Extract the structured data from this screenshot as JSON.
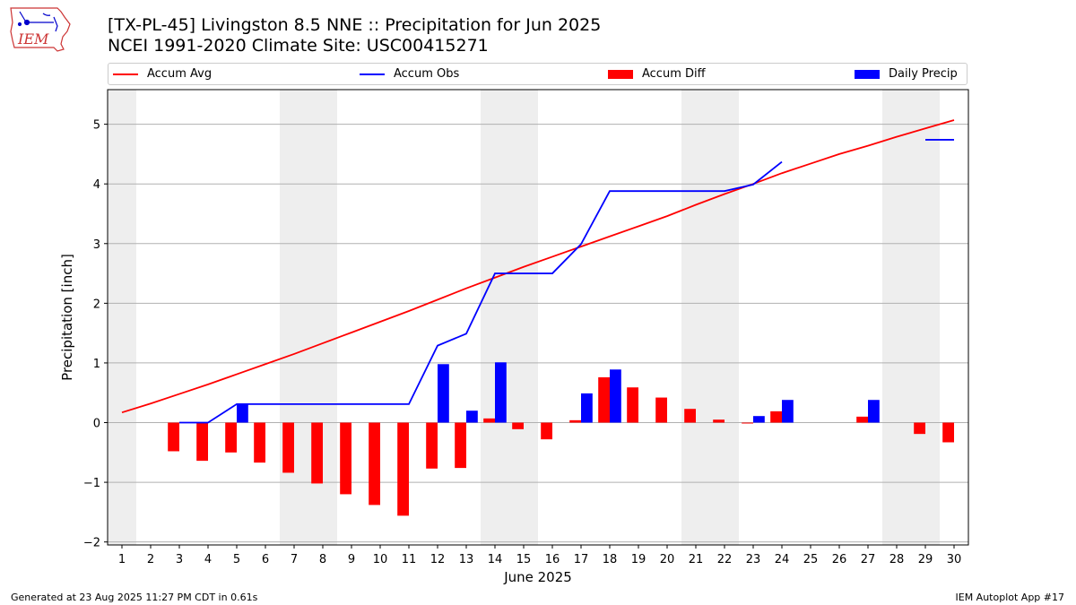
{
  "header": {
    "title_line1": "[TX-PL-45] Livingston 8.5 NNE :: Precipitation for Jun 2025",
    "title_line2": "NCEI 1991-2020 Climate Site: USC00415271",
    "logo_text": "IEM"
  },
  "footer": {
    "generated": "Generated at 23 Aug 2025 11:27 PM CDT in 0.61s",
    "app": "IEM Autoplot App #17"
  },
  "colors": {
    "avg": "#ff0000",
    "obs": "#0000ff",
    "diff": "#ff0000",
    "daily": "#0000ff",
    "weekend_band": "#eeeeee",
    "grid": "#b0b0b0"
  },
  "chart_data": {
    "type": "bar",
    "title": "[TX-PL-45] Livingston 8.5 NNE :: Precipitation for Jun 2025",
    "subtitle": "NCEI 1991-2020 Climate Site: USC00415271",
    "xlabel": "June 2025",
    "ylabel": "Precipitation [inch]",
    "xlim": [
      0.5,
      30.5
    ],
    "ylim": [
      -2.05,
      5.58
    ],
    "x_ticks": [
      1,
      2,
      3,
      4,
      5,
      6,
      7,
      8,
      9,
      10,
      11,
      12,
      13,
      14,
      15,
      16,
      17,
      18,
      19,
      20,
      21,
      22,
      23,
      24,
      25,
      26,
      27,
      28,
      29,
      30
    ],
    "y_ticks": [
      -2,
      -1,
      0,
      1,
      2,
      3,
      4,
      5
    ],
    "y_tick_labels": [
      "−2",
      "−1",
      "0",
      "1",
      "2",
      "3",
      "4",
      "5"
    ],
    "grid": "horizontal",
    "legend_position": "top",
    "weekend_bands": [
      [
        0.5,
        1.5
      ],
      [
        6.5,
        8.5
      ],
      [
        13.5,
        15.5
      ],
      [
        20.5,
        22.5
      ],
      [
        27.5,
        29.5
      ]
    ],
    "days": [
      1,
      2,
      3,
      4,
      5,
      6,
      7,
      8,
      9,
      10,
      11,
      12,
      13,
      14,
      15,
      16,
      17,
      18,
      19,
      20,
      21,
      22,
      23,
      24,
      25,
      26,
      27,
      28,
      29,
      30
    ],
    "series": [
      {
        "name": "Accum Avg",
        "kind": "line",
        "values": [
          0.17,
          0.32,
          0.48,
          0.64,
          0.81,
          0.98,
          1.15,
          1.33,
          1.51,
          1.69,
          1.87,
          2.06,
          2.25,
          2.43,
          2.61,
          2.78,
          2.95,
          3.12,
          3.29,
          3.46,
          3.65,
          3.83,
          4.0,
          4.18,
          4.34,
          4.5,
          4.64,
          4.79,
          4.93,
          5.07
        ]
      },
      {
        "name": "Accum Obs",
        "kind": "line",
        "values": [
          null,
          null,
          0.0,
          0.0,
          0.31,
          0.31,
          0.31,
          0.31,
          0.31,
          0.31,
          0.31,
          1.29,
          1.49,
          2.5,
          2.5,
          2.5,
          2.99,
          3.88,
          3.88,
          3.88,
          3.88,
          3.88,
          3.99,
          4.37,
          null,
          null,
          null,
          null,
          4.74,
          4.74
        ]
      },
      {
        "name": "Accum Diff",
        "kind": "bar",
        "values": [
          null,
          null,
          -0.48,
          -0.64,
          -0.5,
          -0.67,
          -0.84,
          -1.02,
          -1.2,
          -1.38,
          -1.56,
          -0.77,
          -0.76,
          0.07,
          -0.11,
          -0.28,
          0.04,
          0.76,
          0.59,
          0.42,
          0.23,
          0.05,
          -0.01,
          0.19,
          null,
          null,
          0.1,
          null,
          -0.19,
          -0.33
        ]
      },
      {
        "name": "Daily Precip",
        "kind": "bar",
        "values": [
          null,
          null,
          0,
          0,
          0.31,
          0,
          0,
          0,
          0,
          0,
          0,
          0.98,
          0.2,
          1.01,
          0,
          0,
          0.49,
          0.89,
          0,
          0,
          0,
          0,
          0.11,
          0.38,
          null,
          null,
          0.38,
          null,
          0,
          0
        ]
      }
    ]
  }
}
